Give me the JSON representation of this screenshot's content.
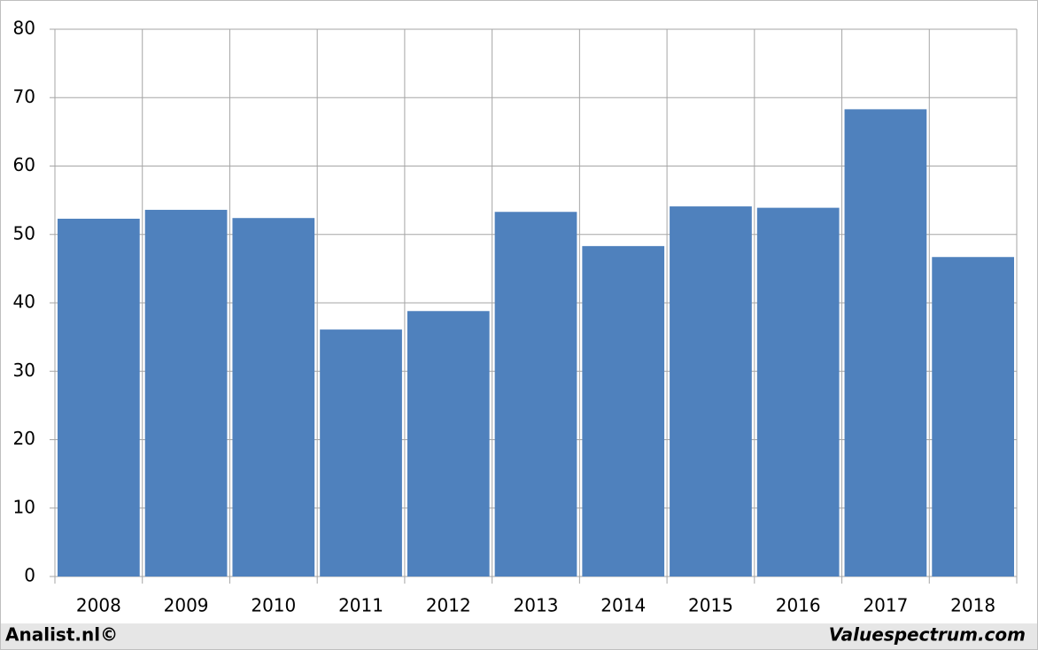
{
  "chart_data": {
    "type": "bar",
    "categories": [
      "2008",
      "2009",
      "2010",
      "2011",
      "2012",
      "2013",
      "2014",
      "2015",
      "2016",
      "2017",
      "2018"
    ],
    "values": [
      52.3,
      53.6,
      52.4,
      36.1,
      38.8,
      53.3,
      48.3,
      54.1,
      53.9,
      68.3,
      46.7
    ],
    "color": "#4f81bd",
    "ylim": [
      0,
      80
    ],
    "yticks": [
      0,
      10,
      20,
      30,
      40,
      50,
      60,
      70,
      80
    ],
    "grid": true
  },
  "footer": {
    "left": "Analist.nl©",
    "right": "Valuespectrum.com"
  }
}
